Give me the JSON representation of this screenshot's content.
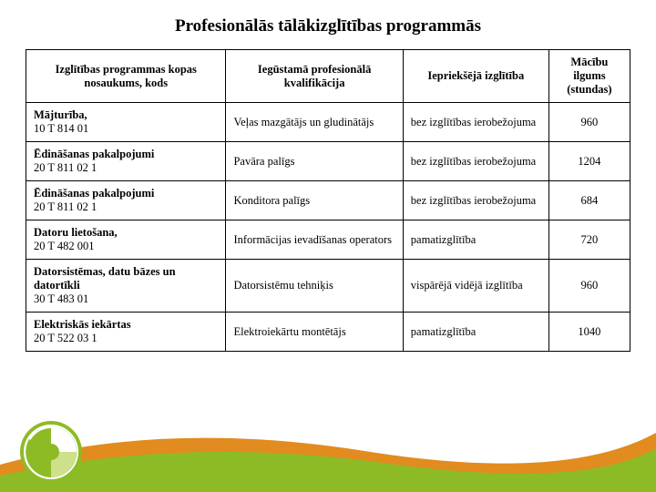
{
  "title": "Profesionālās tālākizglītības programmās",
  "table": {
    "headers": {
      "c1": "Izglītības programmas kopas nosaukums, kods",
      "c2": "Iegūstamā profesionālā kvalifikācija",
      "c3": "Iepriekšējā izglītība",
      "c4": "Mācību ilgums (stundas)"
    },
    "rows": [
      {
        "name": "Mājturība,",
        "code": "10 T 814 01",
        "qual": "Veļas mazgātājs un gludinātājs",
        "prev": "bez izglītības ierobežojuma",
        "hours": "960"
      },
      {
        "name": "Ēdināšanas pakalpojumi",
        "code": "20 T 811 02 1",
        "qual": "Pavāra palīgs",
        "prev": "bez izglītības ierobežojuma",
        "hours": "1204"
      },
      {
        "name": "Ēdināšanas pakalpojumi",
        "code": "20 T 811 02 1",
        "qual": "Konditora palīgs",
        "prev": "bez izglītības ierobežojuma",
        "hours": "684"
      },
      {
        "name": "Datoru lietošana,",
        "code": "20 T 482 001",
        "qual": "Informācijas ievadīšanas operators",
        "prev": "pamatizglītība",
        "hours": "720"
      },
      {
        "name": "Datorsistēmas, datu bāzes un datortīkli",
        "code": "30 T 483 01",
        "qual": "Datorsistēmu tehniķis",
        "prev": "vispārējā vidējā izglītība",
        "hours": "960"
      },
      {
        "name": "Elektriskās iekārtas",
        "code": "20 T 522 03 1",
        "qual": "Elektroiekārtu montētājs",
        "prev": "pamatizglītība",
        "hours": "1040"
      }
    ]
  },
  "colors": {
    "green": "#8dbb26",
    "darkgreen": "#5a7a18",
    "orange": "#e28b1e",
    "white": "#ffffff",
    "border": "#000000"
  }
}
